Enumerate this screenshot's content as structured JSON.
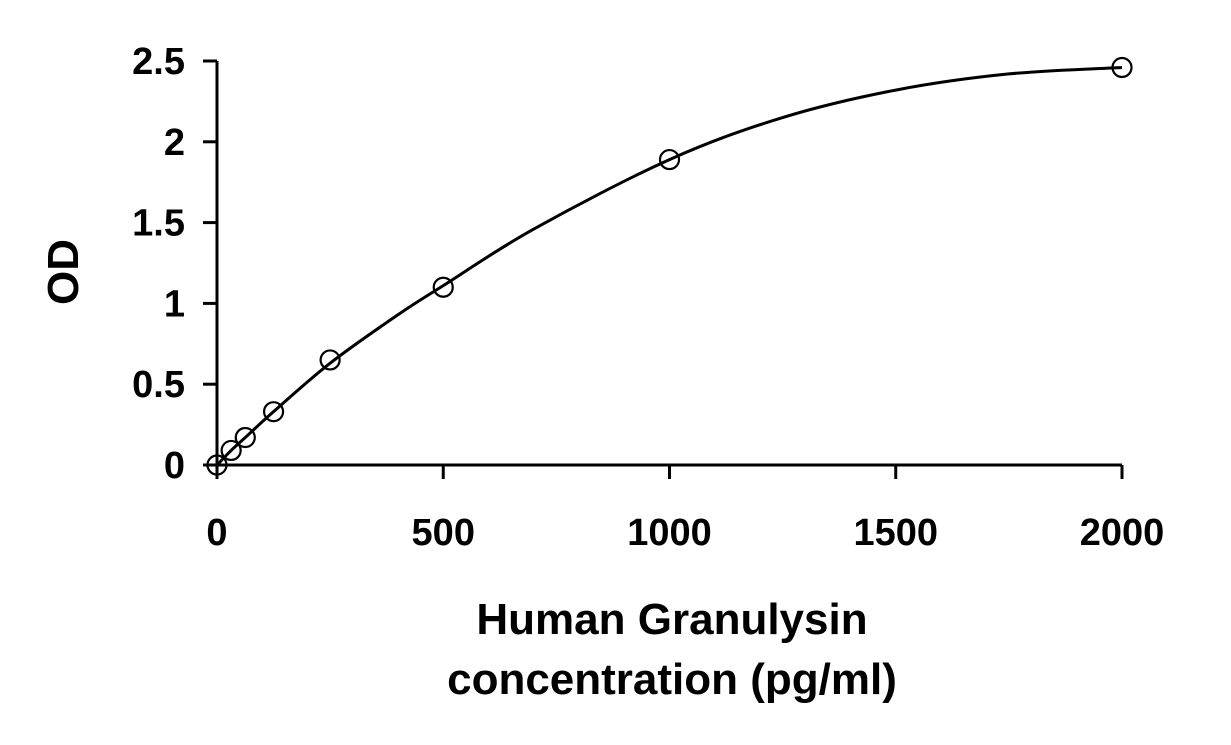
{
  "chart_data": {
    "type": "scatter",
    "title": "",
    "xlabel_lines": [
      "Human Granulysin",
      "concentration (pg/ml)"
    ],
    "ylabel": "OD",
    "xlim": [
      0,
      2000
    ],
    "ylim": [
      0,
      2.5
    ],
    "x_ticks": [
      0,
      500,
      1000,
      1500,
      2000
    ],
    "y_ticks": [
      0,
      0.5,
      1,
      1.5,
      2,
      2.5
    ],
    "x_tick_labels": [
      "0",
      "500",
      "1000",
      "1500",
      "2000"
    ],
    "y_tick_labels": [
      "0",
      "0.5",
      "1",
      "1.5",
      "2",
      "2.5"
    ],
    "grid": false,
    "legend": "none",
    "series": [
      {
        "marker": "open-circle",
        "x": [
          0,
          31.25,
          62.5,
          125,
          250,
          500,
          1000,
          2000
        ],
        "y": [
          0.0,
          0.09,
          0.17,
          0.33,
          0.65,
          1.1,
          1.89,
          2.46
        ]
      }
    ],
    "fit_curve": {
      "style": "smooth-line",
      "x": [
        0,
        31.25,
        62.5,
        125,
        250,
        400,
        500,
        700,
        1000,
        1250,
        1500,
        1750,
        2000
      ],
      "y": [
        0.0,
        0.09,
        0.17,
        0.33,
        0.63,
        0.93,
        1.11,
        1.46,
        1.89,
        2.15,
        2.32,
        2.42,
        2.46
      ]
    }
  }
}
